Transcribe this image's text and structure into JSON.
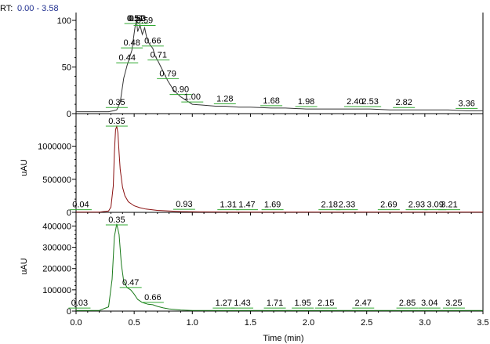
{
  "header": {
    "rt_label": "RT:",
    "rt_range": "0.00 - 3.58"
  },
  "colors": {
    "top": "#333333",
    "middle": "#8a1010",
    "bottom": "#1a7a1a",
    "peak_marker": "#33aa33"
  },
  "chart_data": [
    {
      "type": "line",
      "panel": "top",
      "title": "",
      "ylabel": "",
      "ylim": [
        0,
        100
      ],
      "yticks": [
        0,
        50,
        100
      ],
      "xlim": [
        0,
        3.5
      ],
      "series": [
        {
          "x": [
            0.0,
            0.1,
            0.2,
            0.28,
            0.32,
            0.35,
            0.38,
            0.41,
            0.44,
            0.46,
            0.48,
            0.5,
            0.51,
            0.52,
            0.53,
            0.55,
            0.57,
            0.59,
            0.61,
            0.63,
            0.66,
            0.68,
            0.71,
            0.75,
            0.79,
            0.84,
            0.9,
            0.95,
            1.0,
            1.1,
            1.2,
            1.28,
            1.4,
            1.5,
            1.68,
            1.8,
            1.98,
            2.2,
            2.4,
            2.53,
            2.7,
            2.82,
            3.0,
            3.2,
            3.36,
            3.5
          ],
          "y": [
            2,
            2,
            2,
            2,
            3,
            4,
            12,
            38,
            52,
            60,
            68,
            86,
            95,
            100,
            88,
            95,
            85,
            92,
            80,
            75,
            70,
            62,
            55,
            45,
            35,
            25,
            18,
            14,
            10,
            9,
            8,
            8,
            7,
            7,
            6,
            6,
            5,
            5,
            5,
            5,
            4,
            4,
            4,
            4,
            3,
            3
          ]
        }
      ],
      "peak_labels": [
        {
          "x": 0.35,
          "y": 4,
          "label": "0.35"
        },
        {
          "x": 0.44,
          "y": 52,
          "label": "0.44"
        },
        {
          "x": 0.48,
          "y": 68,
          "label": "0.48"
        },
        {
          "x": 0.51,
          "y": 95,
          "label": "0.51"
        },
        {
          "x": 0.52,
          "y": 100,
          "label": "0.52"
        },
        {
          "x": 0.53,
          "y": 98,
          "label": "0.53"
        },
        {
          "x": 0.59,
          "y": 92,
          "label": "0.59"
        },
        {
          "x": 0.66,
          "y": 70,
          "label": "0.66"
        },
        {
          "x": 0.71,
          "y": 55,
          "label": "0.71"
        },
        {
          "x": 0.79,
          "y": 35,
          "label": "0.79"
        },
        {
          "x": 0.9,
          "y": 18,
          "label": "0.90"
        },
        {
          "x": 1.0,
          "y": 10,
          "label": "1.00"
        },
        {
          "x": 1.28,
          "y": 8,
          "label": "1.28"
        },
        {
          "x": 1.68,
          "y": 6,
          "label": "1.68"
        },
        {
          "x": 1.98,
          "y": 5,
          "label": "1.98"
        },
        {
          "x": 2.4,
          "y": 5,
          "label": "2.40"
        },
        {
          "x": 2.53,
          "y": 5,
          "label": "2.53"
        },
        {
          "x": 2.82,
          "y": 4,
          "label": "2.82"
        },
        {
          "x": 3.36,
          "y": 3,
          "label": "3.36"
        }
      ]
    },
    {
      "type": "line",
      "panel": "middle",
      "title": "",
      "ylabel": "uAU",
      "ylim": [
        0,
        1350000
      ],
      "yticks": [
        0,
        500000,
        1000000
      ],
      "xlim": [
        0,
        3.5
      ],
      "series": [
        {
          "x": [
            0.0,
            0.2,
            0.28,
            0.3,
            0.32,
            0.33,
            0.34,
            0.35,
            0.36,
            0.37,
            0.38,
            0.4,
            0.42,
            0.45,
            0.5,
            0.55,
            0.6,
            0.7,
            0.8,
            0.9,
            1.0,
            1.5,
            2.0,
            2.5,
            3.0,
            3.5
          ],
          "y": [
            5000,
            5000,
            20000,
            80000,
            400000,
            900000,
            1250000,
            1300000,
            1200000,
            900000,
            650000,
            380000,
            250000,
            160000,
            100000,
            70000,
            50000,
            30000,
            20000,
            12000,
            8000,
            5000,
            5000,
            5000,
            5000,
            5000
          ]
        }
      ],
      "peak_labels": [
        {
          "x": 0.04,
          "y": 5000,
          "label": "0.04"
        },
        {
          "x": 0.35,
          "y": 1300000,
          "label": "0.35"
        },
        {
          "x": 0.93,
          "y": 10000,
          "label": "0.93"
        },
        {
          "x": 1.31,
          "y": 5000,
          "label": "1.31"
        },
        {
          "x": 1.47,
          "y": 5000,
          "label": "1.47"
        },
        {
          "x": 1.69,
          "y": 5000,
          "label": "1.69"
        },
        {
          "x": 2.18,
          "y": 5000,
          "label": "2.18"
        },
        {
          "x": 2.33,
          "y": 5000,
          "label": "2.33"
        },
        {
          "x": 2.69,
          "y": 5000,
          "label": "2.69"
        },
        {
          "x": 2.93,
          "y": 5000,
          "label": "2.93"
        },
        {
          "x": 3.09,
          "y": 5000,
          "label": "3.09"
        },
        {
          "x": 3.21,
          "y": 5000,
          "label": "3.21"
        }
      ]
    },
    {
      "type": "line",
      "panel": "bottom",
      "title": "",
      "ylabel": "uAU",
      "xlabel": "Time (min)",
      "ylim": [
        0,
        420000
      ],
      "yticks": [
        0,
        100000,
        200000,
        300000,
        400000
      ],
      "xlim": [
        0,
        3.5
      ],
      "xticks": [
        0.0,
        0.5,
        1.0,
        1.5,
        2.0,
        2.5,
        3.0,
        3.5
      ],
      "series": [
        {
          "x": [
            0.0,
            0.2,
            0.28,
            0.31,
            0.33,
            0.35,
            0.37,
            0.39,
            0.41,
            0.44,
            0.47,
            0.5,
            0.53,
            0.57,
            0.62,
            0.66,
            0.7,
            0.75,
            0.8,
            0.9,
            1.0,
            1.5,
            2.0,
            2.5,
            3.0,
            3.5
          ],
          "y": [
            3000,
            3000,
            20000,
            150000,
            350000,
            410000,
            360000,
            220000,
            140000,
            110000,
            100000,
            80000,
            55000,
            40000,
            32000,
            30000,
            22000,
            15000,
            10000,
            5000,
            3000,
            3000,
            3000,
            3000,
            3000,
            3000
          ]
        }
      ],
      "peak_labels": [
        {
          "x": 0.03,
          "y": 3000,
          "label": "0.03"
        },
        {
          "x": 0.35,
          "y": 410000,
          "label": "0.35"
        },
        {
          "x": 0.47,
          "y": 100000,
          "label": "0.47"
        },
        {
          "x": 0.66,
          "y": 30000,
          "label": "0.66"
        },
        {
          "x": 1.27,
          "y": 3000,
          "label": "1.27"
        },
        {
          "x": 1.43,
          "y": 3000,
          "label": "1.43"
        },
        {
          "x": 1.71,
          "y": 3000,
          "label": "1.71"
        },
        {
          "x": 1.95,
          "y": 3000,
          "label": "1.95"
        },
        {
          "x": 2.15,
          "y": 3000,
          "label": "2.15"
        },
        {
          "x": 2.47,
          "y": 3000,
          "label": "2.47"
        },
        {
          "x": 2.85,
          "y": 3000,
          "label": "2.85"
        },
        {
          "x": 3.04,
          "y": 3000,
          "label": "3.04"
        },
        {
          "x": 3.25,
          "y": 3000,
          "label": "3.25"
        }
      ]
    }
  ]
}
